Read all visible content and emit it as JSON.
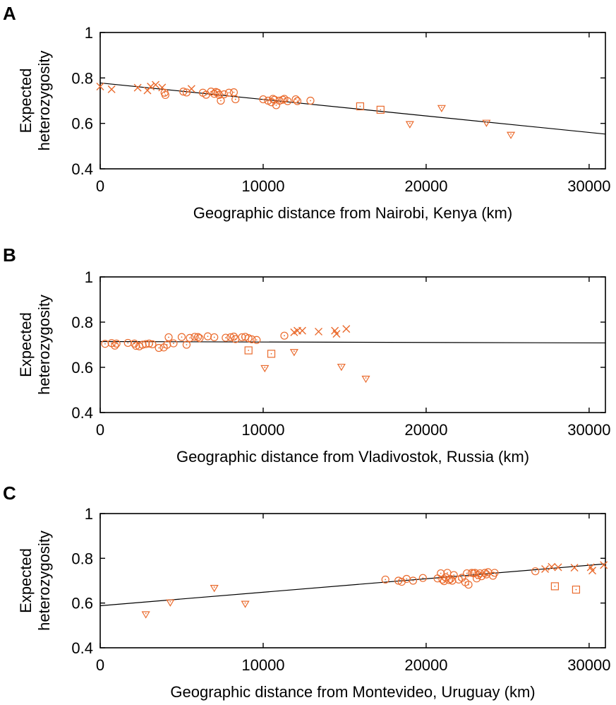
{
  "chart_data": [
    {
      "panel": "A",
      "type": "scatter",
      "xlabel": "Geographic distance from Nairobi, Kenya (km)",
      "ylabel": [
        "Expected",
        "heterozygosity"
      ],
      "xlim": [
        0,
        31000
      ],
      "ylim": [
        0.4,
        1.0
      ],
      "xticks": [
        "0",
        "10000",
        "20000",
        "30000"
      ],
      "yticks": [
        "0.4",
        "0.6",
        "0.8",
        "1"
      ],
      "marker_color": "#ea6a2c",
      "fit_line": {
        "x": [
          0,
          31000
        ],
        "y": [
          0.778,
          0.553
        ]
      },
      "series": [
        {
          "marker": "cross",
          "points": [
            [
              0,
              0.762
            ],
            [
              700,
              0.75
            ],
            [
              2300,
              0.757
            ],
            [
              2900,
              0.745
            ],
            [
              3100,
              0.762
            ],
            [
              3400,
              0.77
            ],
            [
              3800,
              0.758
            ],
            [
              5600,
              0.752
            ]
          ]
        },
        {
          "marker": "circle",
          "points": [
            [
              3950,
              0.735
            ],
            [
              4000,
              0.725
            ],
            [
              5100,
              0.74
            ],
            [
              5300,
              0.736
            ],
            [
              6300,
              0.735
            ],
            [
              6500,
              0.726
            ],
            [
              6800,
              0.74
            ],
            [
              7000,
              0.73
            ],
            [
              7100,
              0.738
            ],
            [
              7200,
              0.735
            ],
            [
              7300,
              0.725
            ],
            [
              7400,
              0.7
            ],
            [
              7600,
              0.728
            ],
            [
              7900,
              0.735
            ],
            [
              8200,
              0.737
            ],
            [
              8300,
              0.706
            ],
            [
              10000,
              0.706
            ],
            [
              10300,
              0.7
            ],
            [
              10500,
              0.693
            ],
            [
              10600,
              0.708
            ],
            [
              10700,
              0.704
            ],
            [
              10800,
              0.68
            ],
            [
              11000,
              0.7
            ],
            [
              11200,
              0.704
            ],
            [
              11300,
              0.708
            ],
            [
              11500,
              0.698
            ],
            [
              12000,
              0.706
            ],
            [
              12100,
              0.698
            ],
            [
              12900,
              0.7
            ]
          ]
        },
        {
          "marker": "square",
          "points": [
            [
              15950,
              0.675
            ],
            [
              17200,
              0.66
            ]
          ]
        },
        {
          "marker": "triangle-down",
          "points": [
            [
              19000,
              0.597
            ],
            [
              20950,
              0.668
            ],
            [
              23700,
              0.603
            ],
            [
              25200,
              0.55
            ]
          ]
        }
      ]
    },
    {
      "panel": "B",
      "type": "scatter",
      "xlabel": "Geographic distance from Vladivostok, Russia (km)",
      "ylabel": [
        "Expected",
        "heterozygosity"
      ],
      "xlim": [
        0,
        31000
      ],
      "ylim": [
        0.4,
        1.0
      ],
      "xticks": [
        "0",
        "10000",
        "20000",
        "30000"
      ],
      "yticks": [
        "0.4",
        "0.6",
        "0.8",
        "1"
      ],
      "marker_color": "#ea6a2c",
      "fit_line": {
        "x": [
          0,
          31000
        ],
        "y": [
          0.714,
          0.708
        ]
      },
      "series": [
        {
          "marker": "circle",
          "points": [
            [
              300,
              0.704
            ],
            [
              700,
              0.707
            ],
            [
              900,
              0.696
            ],
            [
              1000,
              0.705
            ],
            [
              1700,
              0.708
            ],
            [
              2100,
              0.705
            ],
            [
              2200,
              0.695
            ],
            [
              2400,
              0.693
            ],
            [
              2600,
              0.7
            ],
            [
              2800,
              0.703
            ],
            [
              3000,
              0.705
            ],
            [
              3200,
              0.702
            ],
            [
              3600,
              0.686
            ],
            [
              3900,
              0.688
            ],
            [
              4100,
              0.7
            ],
            [
              4200,
              0.733
            ],
            [
              4500,
              0.706
            ],
            [
              5000,
              0.734
            ],
            [
              5300,
              0.7
            ],
            [
              5500,
              0.73
            ],
            [
              5800,
              0.735
            ],
            [
              6000,
              0.734
            ],
            [
              6100,
              0.729
            ],
            [
              6600,
              0.737
            ],
            [
              7000,
              0.733
            ],
            [
              7700,
              0.731
            ],
            [
              8000,
              0.733
            ],
            [
              8200,
              0.736
            ],
            [
              8300,
              0.725
            ],
            [
              8700,
              0.733
            ],
            [
              8900,
              0.735
            ],
            [
              9100,
              0.729
            ],
            [
              9300,
              0.724
            ],
            [
              9600,
              0.721
            ],
            [
              11300,
              0.74
            ]
          ]
        },
        {
          "marker": "cross",
          "points": [
            [
              11900,
              0.755
            ],
            [
              12100,
              0.762
            ],
            [
              12400,
              0.762
            ],
            [
              13400,
              0.758
            ],
            [
              14400,
              0.762
            ],
            [
              14500,
              0.748
            ],
            [
              15100,
              0.77
            ]
          ]
        },
        {
          "marker": "square",
          "points": [
            [
              9100,
              0.675
            ],
            [
              10500,
              0.66
            ]
          ]
        },
        {
          "marker": "triangle-down",
          "points": [
            [
              10100,
              0.597
            ],
            [
              11900,
              0.668
            ],
            [
              14800,
              0.603
            ],
            [
              16300,
              0.55
            ]
          ]
        }
      ]
    },
    {
      "panel": "C",
      "type": "scatter",
      "xlabel": "Geographic distance from Montevideo, Uruguay (km)",
      "ylabel": [
        "Expected",
        "heterozygosity"
      ],
      "xlim": [
        0,
        31000
      ],
      "ylim": [
        0.4,
        1.0
      ],
      "xticks": [
        "0",
        "10000",
        "20000",
        "30000"
      ],
      "yticks": [
        "0.4",
        "0.6",
        "0.8",
        "1"
      ],
      "marker_color": "#ea6a2c",
      "fit_line": {
        "x": [
          0,
          31000
        ],
        "y": [
          0.588,
          0.775
        ]
      },
      "series": [
        {
          "marker": "triangle-down",
          "points": [
            [
              2800,
              0.55
            ],
            [
              4300,
              0.603
            ],
            [
              7000,
              0.668
            ],
            [
              8900,
              0.597
            ]
          ]
        },
        {
          "marker": "circle",
          "points": [
            [
              17500,
              0.705
            ],
            [
              18300,
              0.7
            ],
            [
              18500,
              0.695
            ],
            [
              18800,
              0.708
            ],
            [
              19200,
              0.7
            ],
            [
              19800,
              0.712
            ],
            [
              20700,
              0.71
            ],
            [
              20900,
              0.733
            ],
            [
              21000,
              0.705
            ],
            [
              21100,
              0.698
            ],
            [
              21200,
              0.715
            ],
            [
              21300,
              0.735
            ],
            [
              21400,
              0.703
            ],
            [
              21500,
              0.708
            ],
            [
              21600,
              0.7
            ],
            [
              21700,
              0.725
            ],
            [
              22000,
              0.705
            ],
            [
              22200,
              0.713
            ],
            [
              22400,
              0.693
            ],
            [
              22500,
              0.733
            ],
            [
              22600,
              0.682
            ],
            [
              22800,
              0.735
            ],
            [
              22900,
              0.733
            ],
            [
              23000,
              0.735
            ],
            [
              23100,
              0.71
            ],
            [
              23200,
              0.725
            ],
            [
              23300,
              0.733
            ],
            [
              23400,
              0.72
            ],
            [
              23600,
              0.735
            ],
            [
              23700,
              0.728
            ],
            [
              23800,
              0.738
            ],
            [
              24100,
              0.722
            ],
            [
              24200,
              0.735
            ],
            [
              26700,
              0.742
            ]
          ]
        },
        {
          "marker": "cross",
          "points": [
            [
              27300,
              0.752
            ],
            [
              27700,
              0.762
            ],
            [
              28100,
              0.76
            ],
            [
              29100,
              0.758
            ],
            [
              30100,
              0.76
            ],
            [
              30200,
              0.745
            ],
            [
              30900,
              0.77
            ]
          ]
        },
        {
          "marker": "square",
          "points": [
            [
              27900,
              0.675
            ],
            [
              29200,
              0.66
            ]
          ]
        }
      ]
    }
  ]
}
